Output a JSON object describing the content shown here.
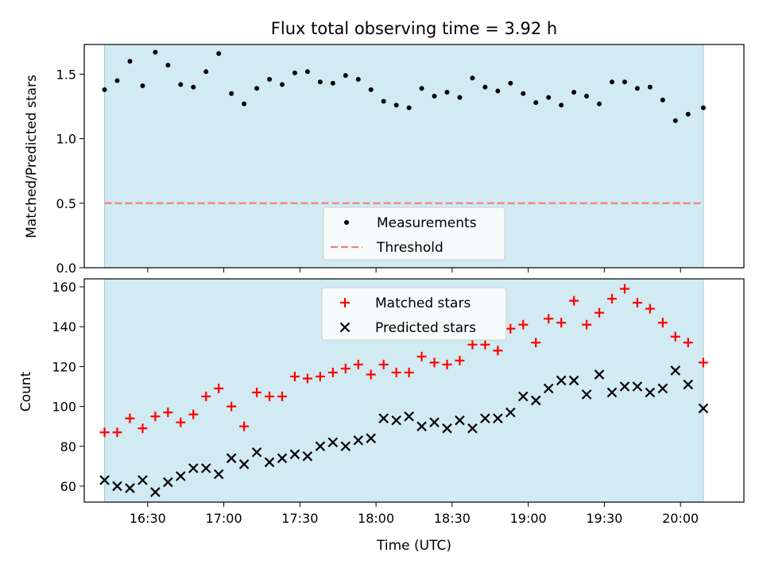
{
  "chart_data": [
    {
      "type": "scatter",
      "title": "Flux total observing time = 3.92 h",
      "xlabel": "",
      "ylabel": "Matched/Predicted stars",
      "xlim": [
        "16:05",
        "20:25"
      ],
      "ylim": [
        0,
        1.73
      ],
      "yticks": [
        0.0,
        0.5,
        1.0,
        1.5
      ],
      "ytick_labels": [
        "0.0",
        "0.5",
        "1.0",
        "1.5"
      ],
      "shaded_range": [
        "16:13",
        "20:09"
      ],
      "shade_color": "#add8e6",
      "legend_position": "lower-center",
      "series": [
        {
          "name": "Measurements",
          "marker": "dot",
          "color": "#000000",
          "x": [
            "16:13",
            "16:18",
            "16:23",
            "16:28",
            "16:33",
            "16:38",
            "16:43",
            "16:48",
            "16:53",
            "16:58",
            "17:03",
            "17:08",
            "17:13",
            "17:18",
            "17:23",
            "17:28",
            "17:33",
            "17:38",
            "17:43",
            "17:48",
            "17:53",
            "17:58",
            "18:03",
            "18:08",
            "18:13",
            "18:18",
            "18:23",
            "18:28",
            "18:33",
            "18:38",
            "18:43",
            "18:48",
            "18:53",
            "18:58",
            "19:03",
            "19:08",
            "19:13",
            "19:18",
            "19:23",
            "19:28",
            "19:33",
            "19:38",
            "19:43",
            "19:48",
            "19:53",
            "19:58",
            "20:03",
            "20:09"
          ],
          "values": [
            1.38,
            1.45,
            1.6,
            1.41,
            1.67,
            1.57,
            1.42,
            1.4,
            1.52,
            1.66,
            1.35,
            1.27,
            1.39,
            1.46,
            1.42,
            1.51,
            1.52,
            1.44,
            1.43,
            1.49,
            1.46,
            1.38,
            1.29,
            1.26,
            1.24,
            1.39,
            1.33,
            1.36,
            1.32,
            1.47,
            1.4,
            1.37,
            1.43,
            1.35,
            1.28,
            1.32,
            1.26,
            1.36,
            1.33,
            1.27,
            1.44,
            1.44,
            1.39,
            1.4,
            1.3,
            1.14,
            1.19,
            1.24
          ]
        },
        {
          "name": "Threshold",
          "line_style": "dashed",
          "color": "#f08080",
          "x": [
            "16:13",
            "20:09"
          ],
          "values": [
            0.5,
            0.5
          ]
        }
      ]
    },
    {
      "type": "scatter",
      "title": "",
      "xlabel": "Time (UTC)",
      "ylabel": "Count",
      "xlim": [
        "16:05",
        "20:25"
      ],
      "xticks": [
        "16:30",
        "17:00",
        "17:30",
        "18:00",
        "18:30",
        "19:00",
        "19:30",
        "20:00"
      ],
      "ylim": [
        52,
        164
      ],
      "yticks": [
        60,
        80,
        100,
        120,
        140,
        160
      ],
      "ytick_labels": [
        "60",
        "80",
        "100",
        "120",
        "140",
        "160"
      ],
      "shaded_range": [
        "16:13",
        "20:09"
      ],
      "shade_color": "#add8e6",
      "legend_position": "top-center",
      "series": [
        {
          "name": "Matched stars",
          "marker": "plus",
          "color": "#ff0000",
          "x": [
            "16:13",
            "16:18",
            "16:23",
            "16:28",
            "16:33",
            "16:38",
            "16:43",
            "16:48",
            "16:53",
            "16:58",
            "17:03",
            "17:08",
            "17:13",
            "17:18",
            "17:23",
            "17:28",
            "17:33",
            "17:38",
            "17:43",
            "17:48",
            "17:53",
            "17:58",
            "18:03",
            "18:08",
            "18:13",
            "18:18",
            "18:23",
            "18:28",
            "18:33",
            "18:38",
            "18:43",
            "18:48",
            "18:53",
            "18:58",
            "19:03",
            "19:08",
            "19:13",
            "19:18",
            "19:23",
            "19:28",
            "19:33",
            "19:38",
            "19:43",
            "19:48",
            "19:53",
            "19:58",
            "20:03",
            "20:09"
          ],
          "values": [
            87,
            87,
            94,
            89,
            95,
            97,
            92,
            96,
            105,
            109,
            100,
            90,
            107,
            105,
            105,
            115,
            114,
            115,
            117,
            119,
            121,
            116,
            121,
            117,
            117,
            125,
            122,
            121,
            123,
            131,
            131,
            128,
            139,
            141,
            132,
            144,
            142,
            153,
            141,
            147,
            154,
            159,
            152,
            149,
            142,
            135,
            132,
            122
          ]
        },
        {
          "name": "Predicted stars",
          "marker": "x",
          "color": "#000000",
          "x": [
            "16:13",
            "16:18",
            "16:23",
            "16:28",
            "16:33",
            "16:38",
            "16:43",
            "16:48",
            "16:53",
            "16:58",
            "17:03",
            "17:08",
            "17:13",
            "17:18",
            "17:23",
            "17:28",
            "17:33",
            "17:38",
            "17:43",
            "17:48",
            "17:53",
            "17:58",
            "18:03",
            "18:08",
            "18:13",
            "18:18",
            "18:23",
            "18:28",
            "18:33",
            "18:38",
            "18:43",
            "18:48",
            "18:53",
            "18:58",
            "19:03",
            "19:08",
            "19:13",
            "19:18",
            "19:23",
            "19:28",
            "19:33",
            "19:38",
            "19:43",
            "19:48",
            "19:53",
            "19:58",
            "20:03",
            "20:09"
          ],
          "values": [
            63,
            60,
            59,
            63,
            57,
            62,
            65,
            69,
            69,
            66,
            74,
            71,
            77,
            72,
            74,
            76,
            75,
            80,
            82,
            80,
            83,
            84,
            94,
            93,
            95,
            90,
            92,
            89,
            93,
            89,
            94,
            94,
            97,
            105,
            103,
            109,
            113,
            113,
            106,
            116,
            107,
            110,
            110,
            107,
            109,
            118,
            111,
            99
          ]
        }
      ]
    }
  ]
}
